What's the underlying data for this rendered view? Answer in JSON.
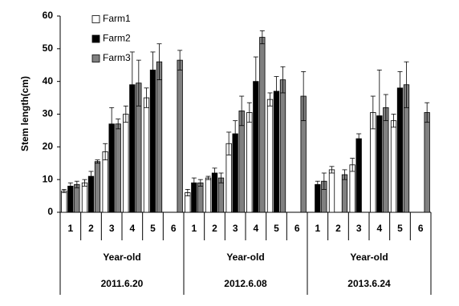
{
  "chart_data": {
    "type": "bar",
    "y_label": "Stem length(cm)",
    "categories": [
      "1",
      "2",
      "3",
      "4",
      "5",
      "6",
      "1",
      "2",
      "3",
      "4",
      "5",
      "6",
      "1",
      "2",
      "3",
      "4",
      "5",
      "6"
    ],
    "groups": [
      {
        "label": "Year-old",
        "date": "2011.6.20"
      },
      {
        "label": "Year-old",
        "date": "2012.6.08"
      },
      {
        "label": "Year-old",
        "date": "2013.6.24"
      }
    ],
    "series": [
      {
        "name": "Farm1",
        "color": "#ffffff",
        "values": [
          6.5,
          9,
          18.5,
          30,
          35,
          null,
          6,
          10.5,
          21,
          30.5,
          34.5,
          null,
          null,
          13,
          14.5,
          30.5,
          28,
          null
        ],
        "errors": [
          0.5,
          1,
          2.5,
          2.5,
          3,
          null,
          1,
          0.5,
          3.5,
          3,
          2,
          null,
          null,
          1,
          2,
          5,
          2,
          null
        ]
      },
      {
        "name": "Farm2",
        "color": "#000000",
        "values": [
          8,
          11,
          27,
          39,
          43.5,
          null,
          9,
          12,
          24,
          40,
          37,
          null,
          8.5,
          null,
          22.5,
          29.5,
          38,
          null
        ],
        "errors": [
          1,
          1.5,
          5,
          10,
          5.5,
          null,
          1.5,
          1.5,
          4,
          7.5,
          4.5,
          null,
          1,
          null,
          1.5,
          14,
          5,
          null
        ]
      },
      {
        "name": "Farm3",
        "color": "#808080",
        "values": [
          8.5,
          15.5,
          27,
          39.5,
          46,
          46.5,
          9,
          10.5,
          31,
          53.5,
          40.5,
          35.5,
          9.5,
          11.5,
          null,
          32,
          39,
          30.5
        ],
        "errors": [
          1,
          0.5,
          1.5,
          7,
          5.5,
          3,
          1,
          1.5,
          4.5,
          2,
          4,
          7.5,
          2.5,
          1.5,
          null,
          4,
          7,
          3
        ]
      }
    ],
    "ylim": [
      0,
      60
    ],
    "yticks": [
      0,
      10,
      20,
      30,
      40,
      50,
      60
    ],
    "grid": false
  }
}
